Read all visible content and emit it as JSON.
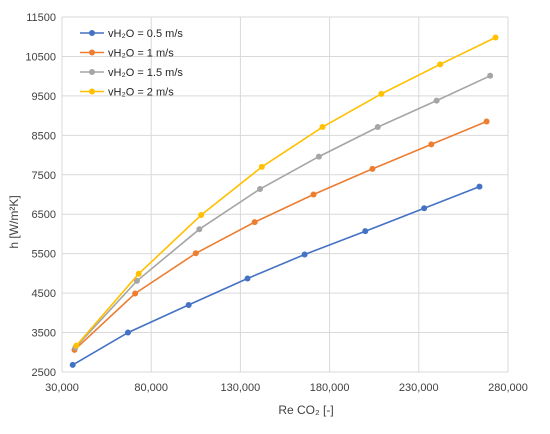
{
  "chart_data": {
    "type": "line",
    "title": "",
    "xlabel": "Re CO₂ [-]",
    "ylabel": "h  [W/m²K]",
    "xlim": [
      30000,
      280000
    ],
    "ylim": [
      2500,
      11500
    ],
    "xticks": [
      30000,
      80000,
      130000,
      180000,
      230000,
      280000
    ],
    "xtick_labels": [
      "30,000",
      "80,000",
      "130,000",
      "180,000",
      "230,000",
      "280,000"
    ],
    "yticks": [
      2500,
      3500,
      4500,
      5500,
      6500,
      7500,
      8500,
      9500,
      10500,
      11500
    ],
    "ytick_labels": [
      "2500",
      "3500",
      "4500",
      "5500",
      "6500",
      "7500",
      "8500",
      "9500",
      "10500",
      "11500"
    ],
    "grid": true,
    "legend_position": "top-left",
    "series": [
      {
        "name": "vH₂O = 0.5 m/s",
        "color": "#4472C4",
        "x": [
          36000,
          67000,
          101000,
          134000,
          166000,
          200000,
          233000,
          264000
        ],
        "y": [
          2680,
          3500,
          4200,
          4870,
          5480,
          6070,
          6650,
          7200
        ]
      },
      {
        "name": "vH₂O = 1 m/s",
        "color": "#ED7D31",
        "x": [
          37000,
          71000,
          105000,
          138000,
          171000,
          204000,
          237000,
          268000
        ],
        "y": [
          3060,
          4490,
          5510,
          6300,
          7000,
          7650,
          8270,
          8850
        ]
      },
      {
        "name": "vH₂O = 1.5 m/s",
        "color": "#A5A5A5",
        "x": [
          37500,
          72000,
          107000,
          141000,
          174000,
          207000,
          240000,
          270000
        ],
        "y": [
          3120,
          4810,
          6120,
          7140,
          7960,
          8710,
          9380,
          10010
        ]
      },
      {
        "name": "vH₂O = 2 m/s",
        "color": "#FFC000",
        "x": [
          38000,
          73000,
          108000,
          142000,
          176000,
          209000,
          242000,
          273000
        ],
        "y": [
          3170,
          4990,
          6480,
          7700,
          8710,
          9550,
          10300,
          10980
        ]
      }
    ]
  }
}
